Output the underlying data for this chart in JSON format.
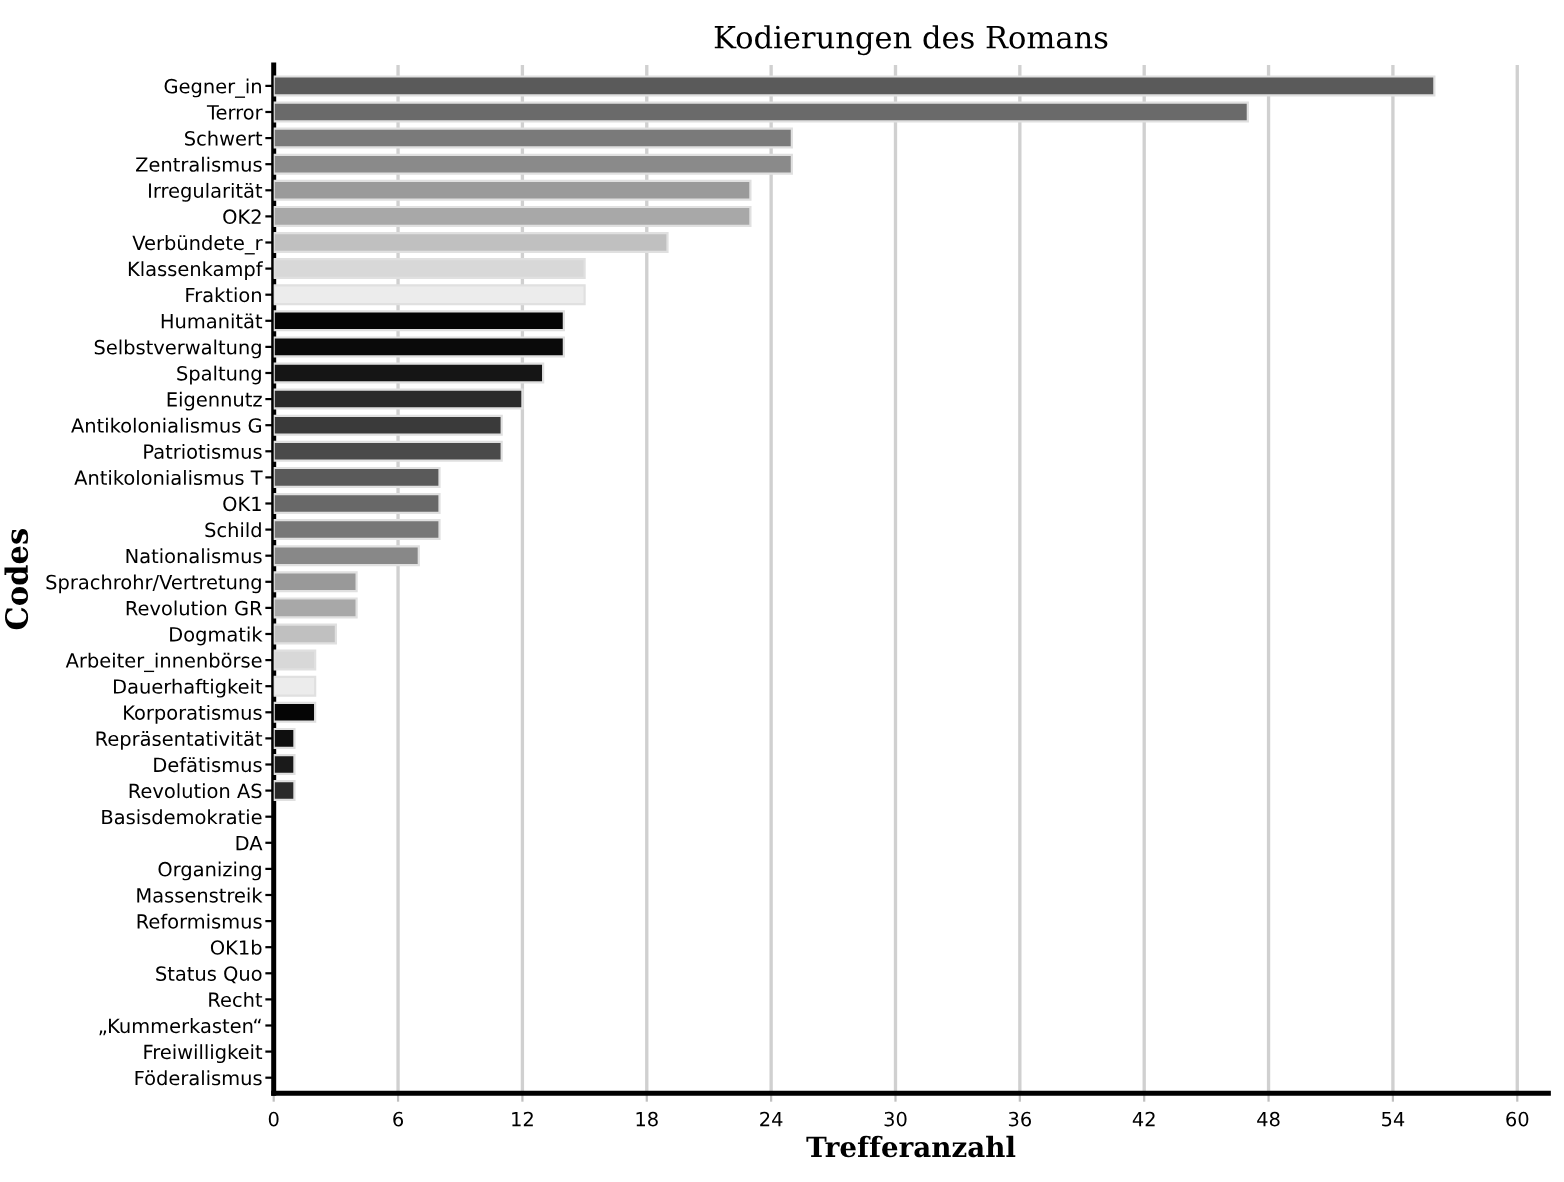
{
  "chart_data": {
    "type": "bar",
    "orientation": "horizontal",
    "title": "Kodierungen des Romans",
    "xlabel": "Trefferanzahl",
    "ylabel": "Codes",
    "categories": [
      "Gegner_in",
      "Terror",
      "Schwert",
      "Zentralismus",
      "Irregularität",
      "OK2",
      "Verbündete_r",
      "Klassenkampf",
      "Fraktion",
      "Humanität",
      "Selbstverwaltung",
      "Spaltung",
      "Eigennutz",
      "Antikolonialismus G",
      "Patriotismus",
      "Antikolonialismus T",
      "OK1",
      "Schild",
      "Nationalismus",
      "Sprachrohr/Vertretung",
      "Revolution GR",
      "Dogmatik",
      "Arbeiter_innenbörse",
      "Dauerhaftigkeit",
      "Korporatismus",
      "Repräsentativität",
      "Defätismus",
      "Revolution AS",
      "Basisdemokratie",
      "DA",
      "Organizing",
      "Massenstreik",
      "Reformismus",
      "OK1b",
      "Status Quo",
      "Recht",
      "„Kummerkasten“",
      "Freiwilligkeit",
      "Föderalismus"
    ],
    "values": [
      56,
      47,
      25,
      25,
      23,
      23,
      19,
      15,
      15,
      14,
      14,
      13,
      12,
      11,
      11,
      8,
      8,
      8,
      7,
      4,
      4,
      3,
      2,
      2,
      2,
      1,
      1,
      1,
      0,
      0,
      0,
      0,
      0,
      0,
      0,
      0,
      0,
      0,
      0
    ],
    "colors": [
      "#5a5a5a",
      "#6a6a6a",
      "#7a7a7a",
      "#8a8a8a",
      "#9a9a9a",
      "#a8a8a8",
      "#c0c0c0",
      "#d8d8d8",
      "#ececec",
      "#050505",
      "#0a0a0a",
      "#151515",
      "#2a2a2a",
      "#3a3a3a",
      "#4a4a4a",
      "#5a5a5a",
      "#686868",
      "#777777",
      "#888888",
      "#999999",
      "#a8a8a8",
      "#c0c0c0",
      "#d8d8d8",
      "#ececec",
      "#050505",
      "#0f0f0f",
      "#1a1a1a",
      "#2a2a2a",
      "#3a3a3a",
      "#4a4a4a",
      "#5a5a5a",
      "#686868",
      "#777777",
      "#888888",
      "#999999",
      "#a8a8a8",
      "#c0c0c0",
      "#d8d8d8",
      "#ececec"
    ],
    "xlim": [
      0,
      61.5
    ],
    "xticks": [
      0,
      6,
      12,
      18,
      24,
      30,
      36,
      42,
      48,
      54,
      60
    ],
    "grid": "x"
  }
}
